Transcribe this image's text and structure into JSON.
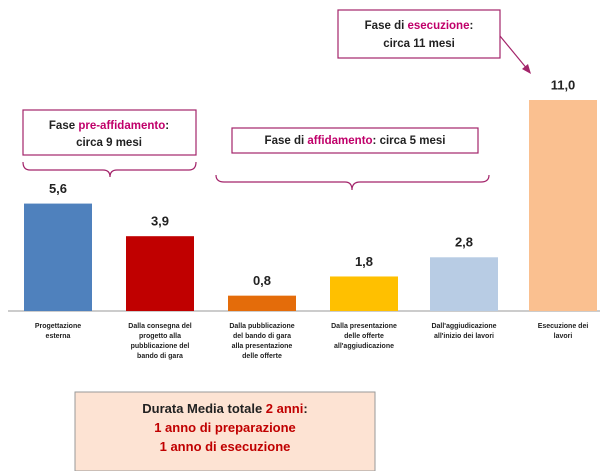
{
  "chart_data": {
    "type": "bar",
    "categories": [
      [
        "Progettazione",
        "esterna"
      ],
      [
        "Dalla consegna del",
        "progetto alla",
        "pubblicazione del",
        "bando di gara"
      ],
      [
        "Dalla pubblicazione",
        "del bando di gara",
        "alla presentazione",
        "delle offerte"
      ],
      [
        "Dalla presentazione",
        "delle offerte",
        "all'aggiudicazione"
      ],
      [
        "Dall'aggiudicazione",
        "all'inizio dei lavori"
      ],
      [
        "Esecuzione dei",
        "lavori"
      ]
    ],
    "values": [
      5.6,
      3.9,
      0.8,
      1.8,
      2.8,
      11.0
    ],
    "value_labels": [
      "5,6",
      "3,9",
      "0,8",
      "1,8",
      "2,8",
      "11,0"
    ],
    "colors": [
      "#4f81bd",
      "#c00000",
      "#e46c0a",
      "#ffc000",
      "#b8cce4",
      "#fac090"
    ],
    "ylim": [
      0,
      11
    ],
    "annotations": [
      {
        "lines": [
          [
            {
              "text": "Fase "
            },
            {
              "text": "pre-affidamento",
              "color": "#c0006a"
            },
            {
              "text": ":"
            }
          ],
          [
            {
              "text": "circa 9 mesi"
            }
          ]
        ]
      },
      {
        "lines": [
          [
            {
              "text": "Fase di "
            },
            {
              "text": "affidamento",
              "color": "#c0006a"
            },
            {
              "text": ": circa 5 mesi"
            }
          ]
        ]
      },
      {
        "lines": [
          [
            {
              "text": "Fase di "
            },
            {
              "text": "esecuzione",
              "color": "#c0006a"
            },
            {
              "text": ":"
            }
          ],
          [
            {
              "text": "circa 11 mesi"
            }
          ]
        ]
      },
      {
        "lines": [
          [
            {
              "text": "Durata Media totale "
            },
            {
              "text": "2 anni",
              "color": "#c00000"
            },
            {
              "text": ":"
            }
          ],
          [
            {
              "text": "1 anno di preparazione",
              "color": "#c00000"
            }
          ],
          [
            {
              "text": "1 anno di esecuzione",
              "color": "#c00000"
            }
          ]
        ]
      }
    ]
  }
}
